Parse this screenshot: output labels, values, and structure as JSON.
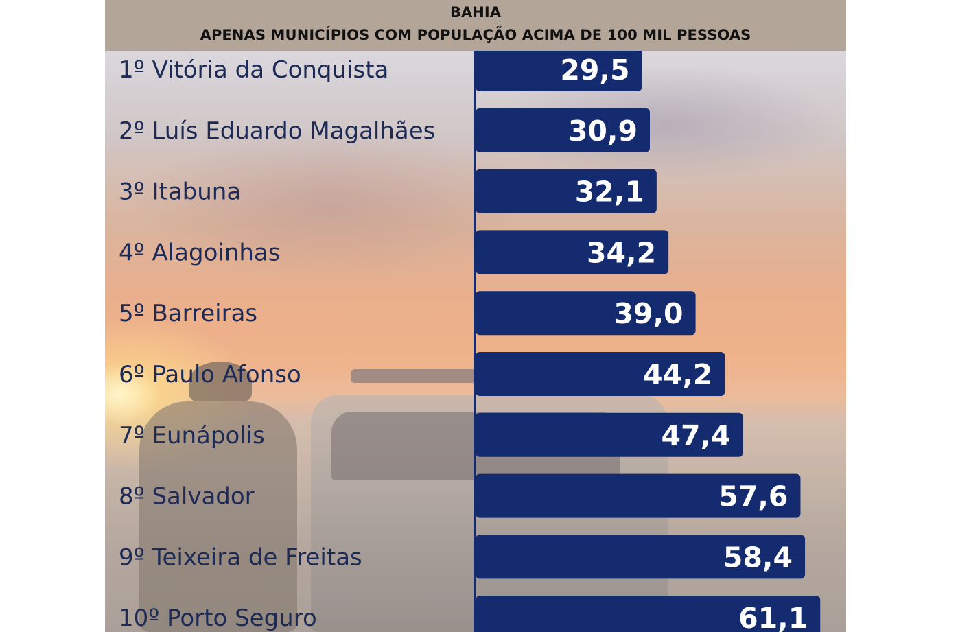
{
  "header": {
    "title": "BAHIA",
    "subtitle": "APENAS MUNICÍPIOS COM POPULAÇÃO ACIMA DE 100 MIL PESSOAS"
  },
  "colors": {
    "bar": "#142b70",
    "header_background": "#b3a597",
    "value_text": "#ffffff",
    "label_text": "#1d2a55"
  },
  "chart_data": {
    "type": "bar",
    "orientation": "horizontal",
    "title": "BAHIA",
    "subtitle": "APENAS MUNICÍPIOS COM POPULAÇÃO ACIMA DE 100 MIL PESSOAS",
    "categories": [
      "1º Vitória da Conquista",
      "2º Luís Eduardo Magalhães",
      "3º Itabuna",
      "4º Alagoinhas",
      "5º Barreiras",
      "6º Paulo Afonso",
      "7º Eunápolis",
      "8º Salvador",
      "9º Teixeira de Freitas",
      "10º Porto Seguro"
    ],
    "values": [
      29.5,
      30.9,
      32.1,
      34.2,
      39.0,
      44.2,
      47.4,
      57.6,
      58.4,
      61.1
    ],
    "value_labels": [
      "29,5",
      "30,9",
      "32,1",
      "34,2",
      "39,0",
      "44,2",
      "47,4",
      "57,6",
      "58,4",
      "61,1"
    ],
    "xlabel": "",
    "ylabel": "",
    "grid": false,
    "legend": "none"
  }
}
